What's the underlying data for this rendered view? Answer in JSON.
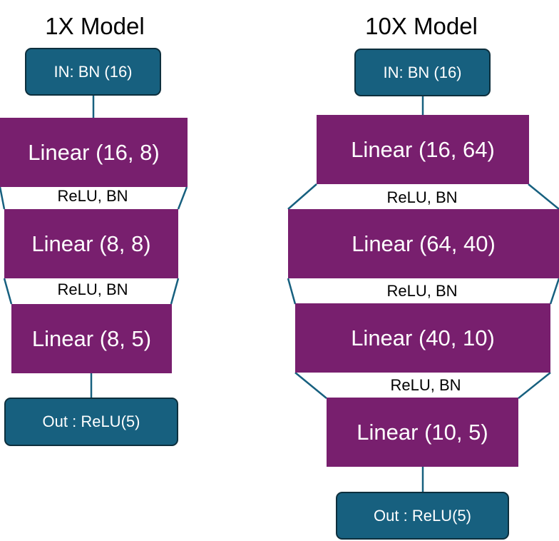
{
  "models": [
    {
      "title": "1X Model",
      "input": "IN: BN (16)",
      "layers": [
        "Linear (16, 8)",
        "Linear (8, 8)",
        "Linear (8, 5)"
      ],
      "activations": [
        "ReLU, BN",
        "ReLU, BN"
      ],
      "output": "Out : ReLU(5)"
    },
    {
      "title": "10X Model",
      "input": "IN: BN (16)",
      "layers": [
        "Linear (16, 64)",
        "Linear (64, 40)",
        "Linear (40, 10)",
        "Linear (10, 5)"
      ],
      "activations": [
        "ReLU, BN",
        "ReLU, BN",
        "ReLU, BN"
      ],
      "output": "Out : ReLU(5)"
    }
  ],
  "colors": {
    "io_fill": "#17607f",
    "io_border": "#0d2f3d",
    "layer_fill": "#781f6e",
    "connector": "#17607f"
  }
}
